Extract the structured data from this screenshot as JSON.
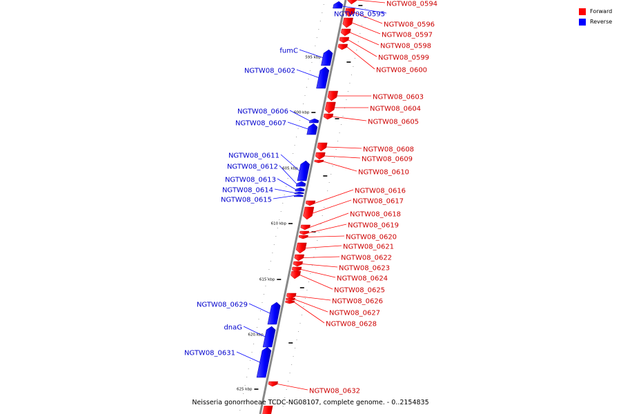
{
  "caption": "Neisseria gonorrhoeae TCDC-NG08107, complete genome. - 0..2154835",
  "legend": [
    {
      "label": "Forward",
      "color": "#ff0000"
    },
    {
      "label": "Reverse",
      "color": "#0000ff"
    }
  ],
  "colors": {
    "forward": "#ff0000",
    "reverse": "#0000ff",
    "backbone": "#888888"
  },
  "scale_ticks": [
    "595 kbp",
    "600 kbp",
    "605 kbp",
    "610 kbp",
    "615 kbp",
    "620 kbp",
    "625 kbp"
  ],
  "genes": [
    {
      "name": "NGTW08_0594",
      "strand": "forward"
    },
    {
      "name": "NGTW08_0595",
      "strand": "reverse"
    },
    {
      "name": "NGTW08_0596",
      "strand": "forward"
    },
    {
      "name": "NGTW08_0597",
      "strand": "forward"
    },
    {
      "name": "NGTW08_0598",
      "strand": "forward"
    },
    {
      "name": "NGTW08_0599",
      "strand": "forward"
    },
    {
      "name": "NGTW08_0600",
      "strand": "forward"
    },
    {
      "name": "fumC",
      "strand": "reverse"
    },
    {
      "name": "NGTW08_0602",
      "strand": "reverse"
    },
    {
      "name": "NGTW08_0603",
      "strand": "forward"
    },
    {
      "name": "NGTW08_0604",
      "strand": "forward"
    },
    {
      "name": "NGTW08_0605",
      "strand": "forward"
    },
    {
      "name": "NGTW08_0606",
      "strand": "reverse"
    },
    {
      "name": "NGTW08_0607",
      "strand": "reverse"
    },
    {
      "name": "NGTW08_0608",
      "strand": "forward"
    },
    {
      "name": "NGTW08_0609",
      "strand": "forward"
    },
    {
      "name": "NGTW08_0610",
      "strand": "forward"
    },
    {
      "name": "NGTW08_0611",
      "strand": "reverse"
    },
    {
      "name": "NGTW08_0612",
      "strand": "reverse"
    },
    {
      "name": "NGTW08_0613",
      "strand": "reverse"
    },
    {
      "name": "NGTW08_0614",
      "strand": "reverse"
    },
    {
      "name": "NGTW08_0615",
      "strand": "reverse"
    },
    {
      "name": "NGTW08_0616",
      "strand": "forward"
    },
    {
      "name": "NGTW08_0617",
      "strand": "forward"
    },
    {
      "name": "NGTW08_0618",
      "strand": "forward"
    },
    {
      "name": "NGTW08_0619",
      "strand": "forward"
    },
    {
      "name": "NGTW08_0620",
      "strand": "forward"
    },
    {
      "name": "NGTW08_0621",
      "strand": "forward"
    },
    {
      "name": "NGTW08_0622",
      "strand": "forward"
    },
    {
      "name": "NGTW08_0623",
      "strand": "forward"
    },
    {
      "name": "NGTW08_0624",
      "strand": "forward"
    },
    {
      "name": "NGTW08_0625",
      "strand": "forward"
    },
    {
      "name": "NGTW08_0626",
      "strand": "forward"
    },
    {
      "name": "NGTW08_0627",
      "strand": "forward"
    },
    {
      "name": "NGTW08_0628",
      "strand": "forward"
    },
    {
      "name": "NGTW08_0629",
      "strand": "reverse"
    },
    {
      "name": "dnaG",
      "strand": "reverse"
    },
    {
      "name": "NGTW08_0631",
      "strand": "reverse"
    },
    {
      "name": "NGTW08_0632",
      "strand": "forward"
    }
  ]
}
